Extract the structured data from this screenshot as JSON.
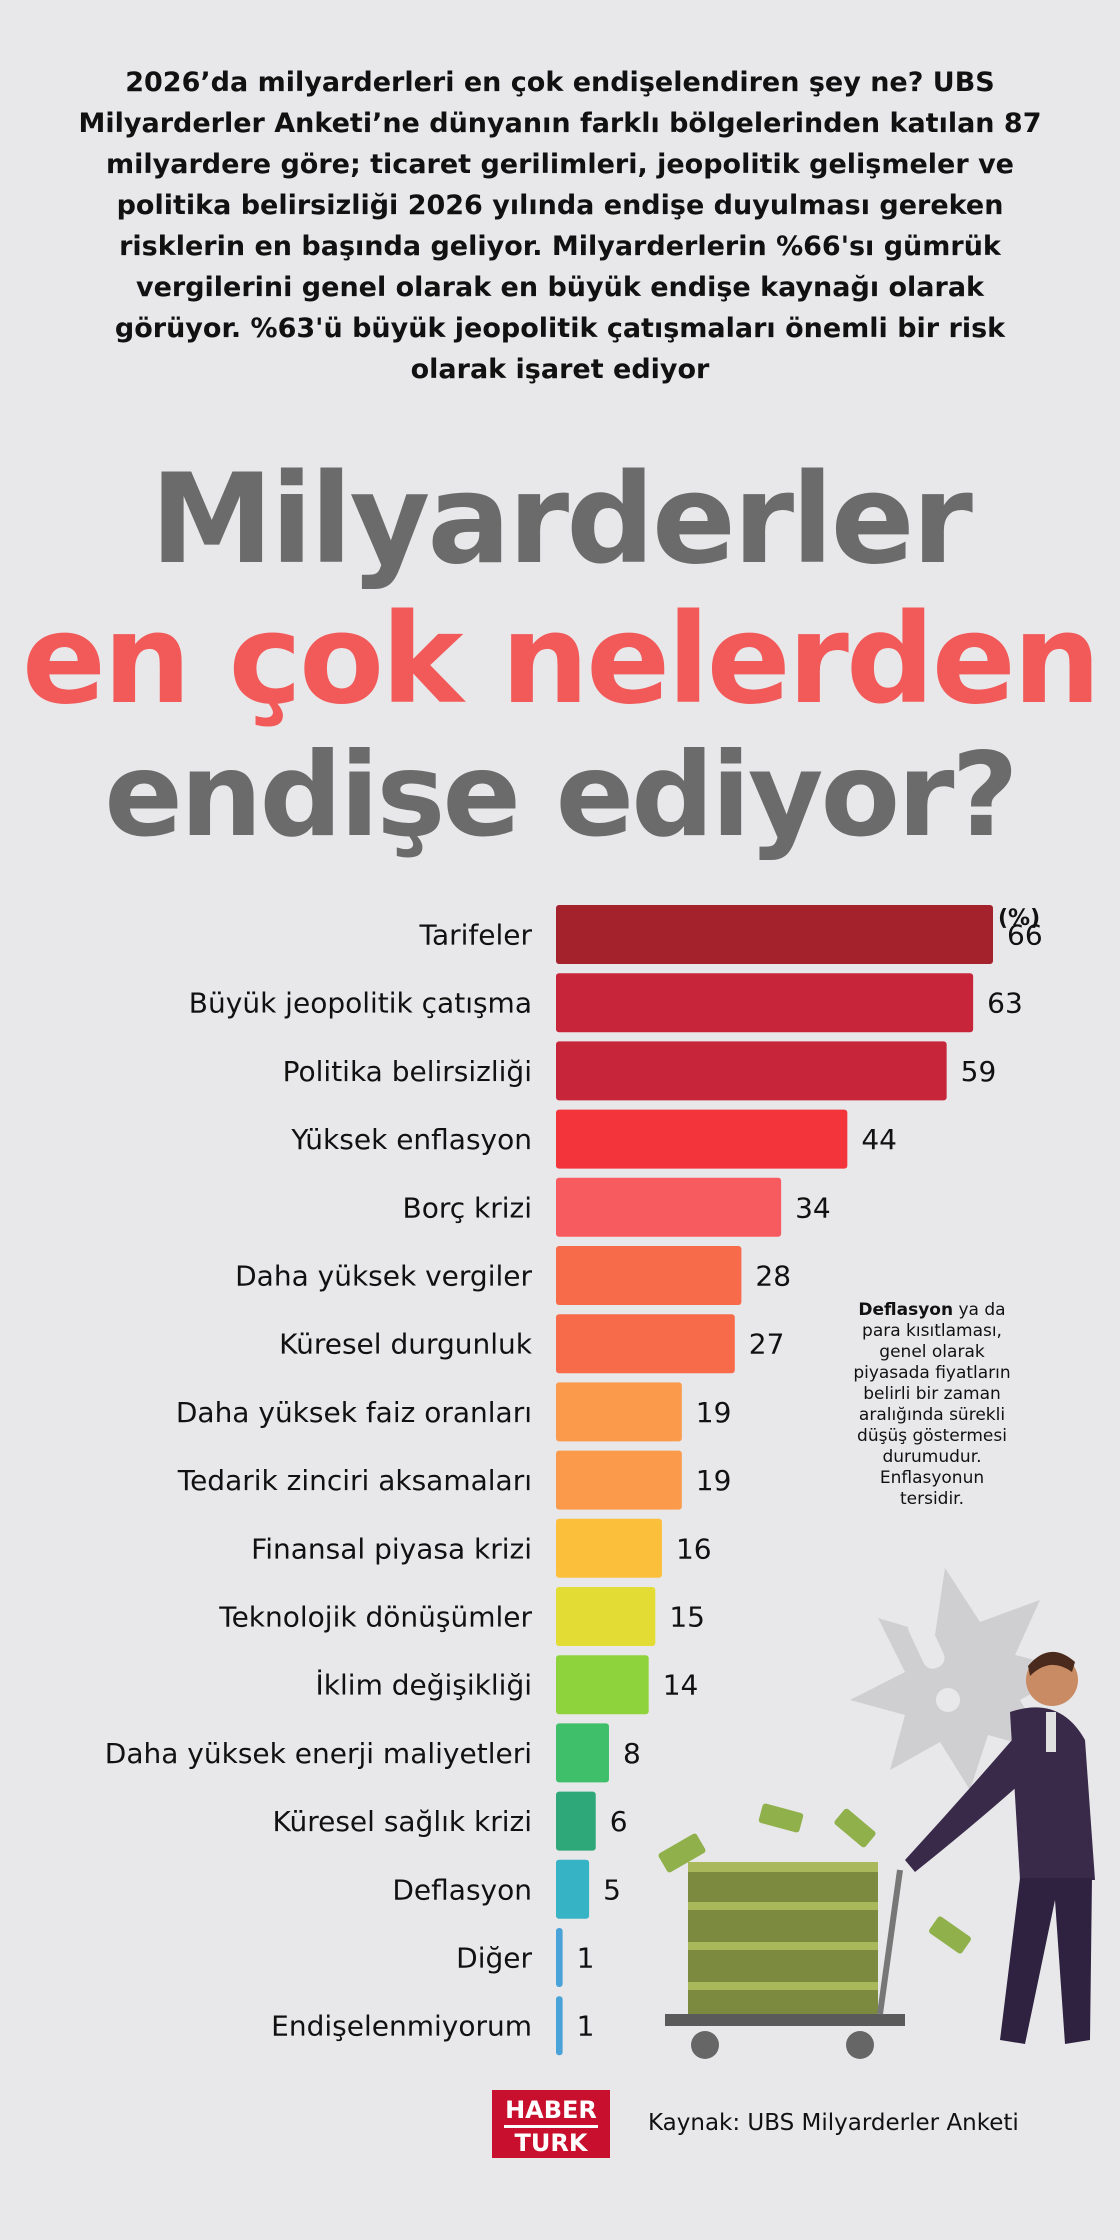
{
  "intro": "2026’da milyarderleri en çok endişelendiren şey ne? UBS Milyarderler Anketi’ne dünyanın farklı bölgelerinden katılan 87 milyardere göre; ticaret gerilimleri, jeopolitik gelişmeler ve politika belirsizliği 2026 yılında endişe duyulması gereken risklerin en başında geliyor. Milyarderlerin %66'sı gümrük vergilerini genel olarak en büyük endişe kaynağı olarak görüyor. %63'ü büyük jeopolitik çatışmaları önemli bir risk olarak işaret ediyor",
  "headline": {
    "line1": "Milyarderler",
    "line2": "en çok nelerden",
    "line3": "endişe ediyor?",
    "accent_color": "#f25a5a",
    "gray_color": "#6b6b6b"
  },
  "chart_data": {
    "type": "bar",
    "orientation": "horizontal",
    "unit_label": "(%)",
    "categories": [
      "Tarifeler",
      "Büyük jeopolitik çatışma",
      "Politika belirsizliği",
      "Yüksek enflasyon",
      "Borç krizi",
      "Daha yüksek vergiler",
      "Küresel durgunluk",
      "Daha yüksek faiz oranları",
      "Tedarik zinciri aksamaları",
      "Finansal piyasa krizi",
      "Teknolojik dönüşümler",
      "İklim değişikliği",
      "Daha yüksek enerji maliyetleri",
      "Küresel sağlık krizi",
      "Deflasyon",
      "Diğer",
      "Endişelenmiyorum"
    ],
    "values": [
      66,
      63,
      59,
      44,
      34,
      28,
      27,
      19,
      19,
      16,
      15,
      14,
      8,
      6,
      5,
      1,
      1
    ],
    "colors": [
      "#a4222c",
      "#c7263a",
      "#c7263a",
      "#f3353b",
      "#f75a5f",
      "#f76a4a",
      "#f76a4a",
      "#fa9a4a",
      "#fa9a4a",
      "#fbbf3c",
      "#e2dc35",
      "#8fd33c",
      "#3fbf6a",
      "#2ea879",
      "#36b3c4",
      "#4aa3d8",
      "#4aa3d8"
    ],
    "xlim": [
      0,
      66
    ]
  },
  "note": {
    "bold": "Deflasyon",
    "text": " ya da para kısıtlaması, genel olarak piyasada fiyatların belirli bir zaman aralığında sürekli düşüş göstermesi durumudur. Enflasyonun tersidir."
  },
  "footer": {
    "logo_top": "HABER",
    "logo_bottom": "TURK",
    "logo_color": "#c8102e",
    "source": "Kaynak: UBS Milyarderler Anketi"
  }
}
